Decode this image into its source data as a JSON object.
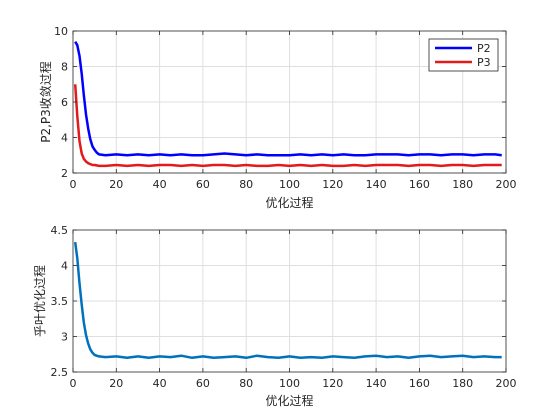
{
  "chart_data": [
    {
      "type": "line",
      "title": "",
      "xlabel": "优化过程",
      "ylabel": "P2,P3收敛过程",
      "xlim": [
        0,
        200
      ],
      "ylim": [
        2,
        10
      ],
      "xticks": [
        0,
        20,
        40,
        60,
        80,
        100,
        120,
        140,
        160,
        180,
        200
      ],
      "yticks": [
        2,
        4,
        6,
        8,
        10
      ],
      "grid": true,
      "legend_position": "top-right",
      "series": [
        {
          "name": "P2",
          "color": "#0000ff",
          "x": [
            1,
            2,
            3,
            4,
            5,
            6,
            7,
            8,
            9,
            10,
            11,
            12,
            15,
            20,
            25,
            30,
            35,
            40,
            45,
            50,
            55,
            60,
            65,
            70,
            75,
            80,
            85,
            90,
            95,
            100,
            105,
            110,
            115,
            120,
            125,
            130,
            135,
            140,
            145,
            150,
            155,
            160,
            165,
            170,
            175,
            180,
            185,
            190,
            195,
            198
          ],
          "values": [
            9.4,
            9.2,
            8.6,
            7.6,
            6.4,
            5.3,
            4.5,
            3.9,
            3.5,
            3.3,
            3.15,
            3.05,
            3.0,
            3.05,
            3.0,
            3.05,
            3.0,
            3.05,
            3.0,
            3.05,
            3.0,
            3.0,
            3.05,
            3.1,
            3.05,
            3.0,
            3.05,
            3.0,
            3.0,
            3.0,
            3.05,
            3.0,
            3.05,
            3.0,
            3.05,
            3.0,
            3.0,
            3.05,
            3.05,
            3.05,
            3.0,
            3.05,
            3.05,
            3.0,
            3.05,
            3.05,
            3.0,
            3.05,
            3.05,
            3.0
          ]
        },
        {
          "name": "P3",
          "color": "#e31a1c",
          "x": [
            1,
            2,
            3,
            4,
            5,
            6,
            7,
            8,
            9,
            10,
            12,
            15,
            20,
            25,
            30,
            35,
            40,
            45,
            50,
            55,
            60,
            65,
            70,
            75,
            80,
            85,
            90,
            95,
            100,
            105,
            110,
            115,
            120,
            125,
            130,
            135,
            140,
            145,
            150,
            155,
            160,
            165,
            170,
            175,
            180,
            185,
            190,
            195,
            198
          ],
          "values": [
            7.0,
            5.2,
            3.8,
            3.1,
            2.8,
            2.65,
            2.55,
            2.5,
            2.45,
            2.45,
            2.4,
            2.4,
            2.45,
            2.4,
            2.45,
            2.4,
            2.45,
            2.45,
            2.4,
            2.45,
            2.4,
            2.45,
            2.45,
            2.4,
            2.45,
            2.4,
            2.4,
            2.45,
            2.4,
            2.45,
            2.4,
            2.45,
            2.4,
            2.4,
            2.45,
            2.4,
            2.45,
            2.45,
            2.45,
            2.4,
            2.45,
            2.45,
            2.4,
            2.45,
            2.45,
            2.4,
            2.45,
            2.45,
            2.45
          ]
        }
      ]
    },
    {
      "type": "line",
      "title": "",
      "xlabel": "优化过程",
      "ylabel": "乎叶优化过程",
      "xlim": [
        0,
        200
      ],
      "ylim": [
        2.5,
        4.5
      ],
      "xticks": [
        0,
        20,
        40,
        60,
        80,
        100,
        120,
        140,
        160,
        180,
        200
      ],
      "yticks": [
        2.5,
        3,
        3.5,
        4,
        4.5
      ],
      "grid": true,
      "series": [
        {
          "name": "",
          "color": "#0072bd",
          "x": [
            1,
            2,
            3,
            4,
            5,
            6,
            7,
            8,
            9,
            10,
            12,
            15,
            20,
            25,
            30,
            35,
            40,
            45,
            50,
            55,
            60,
            65,
            70,
            75,
            80,
            85,
            90,
            95,
            100,
            105,
            110,
            115,
            120,
            125,
            130,
            135,
            140,
            145,
            150,
            155,
            160,
            165,
            170,
            175,
            180,
            185,
            190,
            195,
            198
          ],
          "values": [
            4.33,
            4.1,
            3.75,
            3.45,
            3.2,
            3.02,
            2.9,
            2.82,
            2.77,
            2.74,
            2.72,
            2.71,
            2.72,
            2.7,
            2.72,
            2.7,
            2.72,
            2.71,
            2.73,
            2.7,
            2.72,
            2.7,
            2.71,
            2.72,
            2.7,
            2.73,
            2.71,
            2.7,
            2.72,
            2.7,
            2.71,
            2.7,
            2.72,
            2.71,
            2.7,
            2.72,
            2.73,
            2.71,
            2.72,
            2.7,
            2.72,
            2.73,
            2.71,
            2.72,
            2.73,
            2.71,
            2.72,
            2.71,
            2.71
          ]
        }
      ]
    }
  ]
}
